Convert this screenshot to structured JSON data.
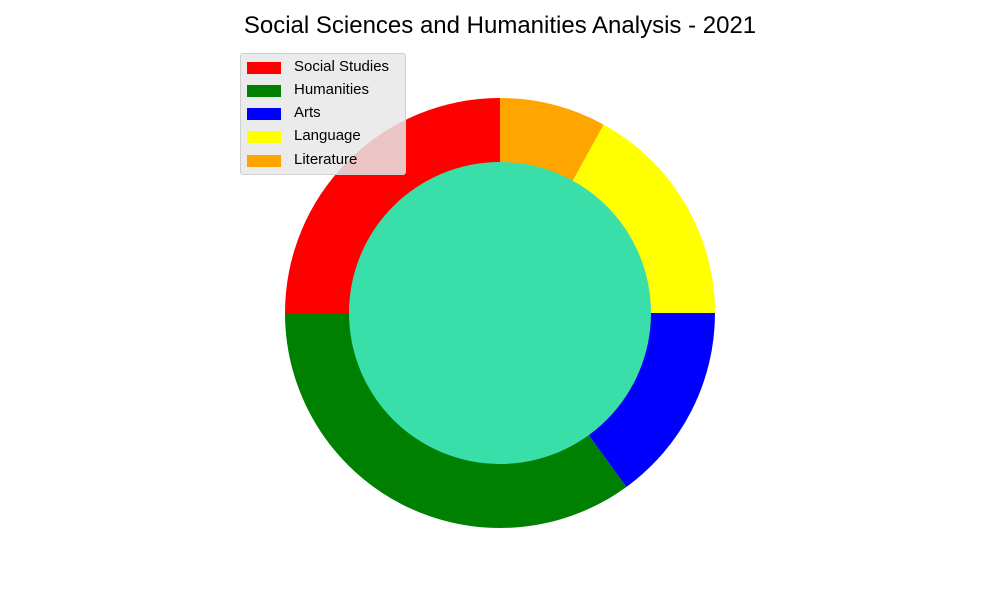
{
  "chart_data": {
    "type": "pie",
    "style": "donut",
    "title": "Social Sciences and Humanities Analysis - 2021",
    "categories": [
      "Social Studies",
      "Humanities",
      "Arts",
      "Language",
      "Literature"
    ],
    "values": [
      25,
      35,
      15,
      17,
      8
    ],
    "colors": [
      "#ff0000",
      "#008000",
      "#0000ff",
      "#ffff00",
      "#ffa500"
    ],
    "center_color": "#39dea9",
    "start_angle_deg": 90,
    "direction": "counterclockwise",
    "legend_position": "upper-left"
  }
}
